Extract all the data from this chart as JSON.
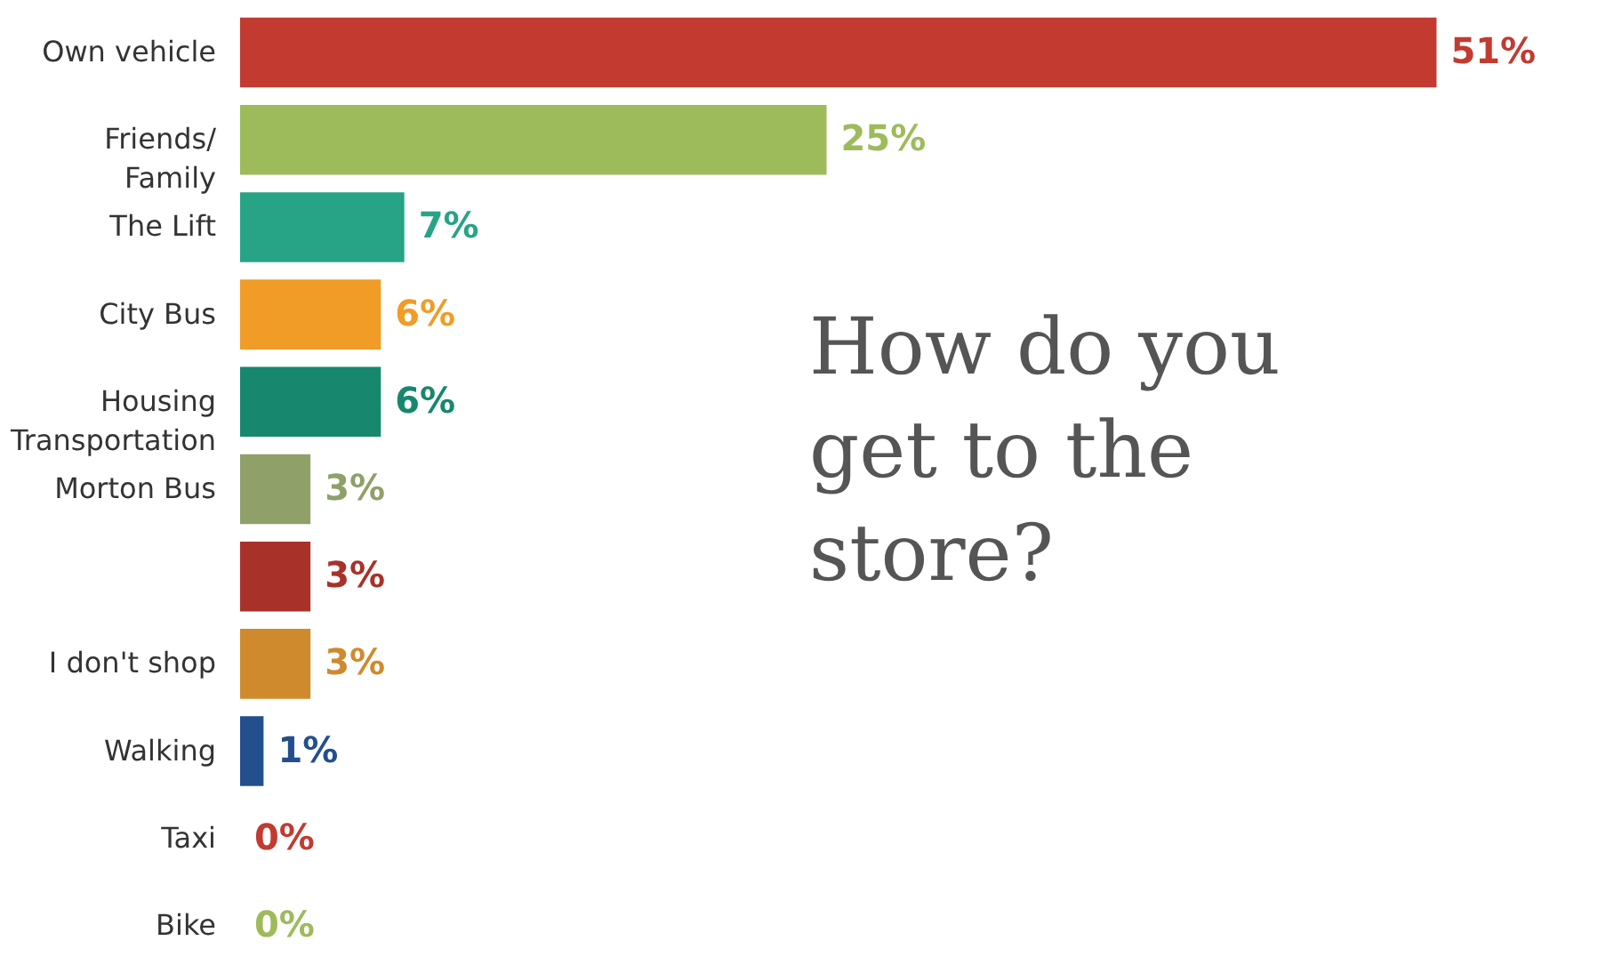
{
  "chart_data": {
    "type": "bar",
    "orientation": "horizontal",
    "title": "How do you get to the store?",
    "categories": [
      "Own vehicle",
      "Friends/\nFamily",
      "The Lift",
      "City Bus",
      "Housing\nTransportation",
      "Morton Bus",
      null,
      "I don't shop",
      "Walking",
      "Taxi",
      "Bike"
    ],
    "values": [
      51,
      25,
      7,
      6,
      6,
      3,
      3,
      3,
      1,
      0,
      0
    ],
    "colors": [
      "#c23a30",
      "#9dbb5a",
      "#27a386",
      "#f09c27",
      "#17876e",
      "#8fa069",
      "#a8322a",
      "#d08a2e",
      "#23508c",
      "#c23a30",
      "#9dbb5a"
    ],
    "value_labels": [
      "51%",
      "25%",
      "7%",
      "6%",
      "6%",
      "3%",
      "3%",
      "3%",
      "1%",
      "0%",
      "0%"
    ]
  }
}
